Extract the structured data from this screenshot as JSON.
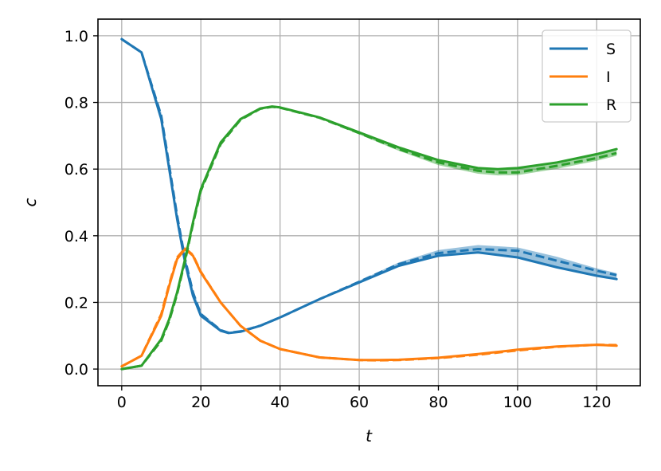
{
  "chart_data": {
    "type": "line",
    "xlabel": "t",
    "ylabel": "c",
    "xlim": [
      -6,
      131
    ],
    "ylim": [
      -0.05,
      1.05
    ],
    "x_ticks": [
      0,
      20,
      40,
      60,
      80,
      100,
      120
    ],
    "y_ticks": [
      0.0,
      0.2,
      0.4,
      0.6,
      0.8,
      1.0
    ],
    "x_tick_labels": [
      "0",
      "20",
      "40",
      "60",
      "80",
      "100",
      "120"
    ],
    "y_tick_labels": [
      "0.0",
      "0.2",
      "0.4",
      "0.6",
      "0.8",
      "1.0"
    ],
    "grid": true,
    "legend_position": "top-right",
    "legend": [
      "S",
      "I",
      "R"
    ],
    "series": [
      {
        "name": "S",
        "color": "#1f77b4",
        "x": [
          0,
          5,
          10,
          12,
          14,
          16,
          18,
          20,
          25,
          27,
          30,
          35,
          40,
          50,
          60,
          70,
          80,
          90,
          100,
          110,
          120,
          125
        ],
        "solid": [
          0.99,
          0.95,
          0.75,
          0.6,
          0.45,
          0.32,
          0.22,
          0.16,
          0.115,
          0.108,
          0.112,
          0.13,
          0.155,
          0.21,
          0.26,
          0.31,
          0.34,
          0.35,
          0.335,
          0.305,
          0.28,
          0.27
        ],
        "dashed": [
          0.99,
          0.95,
          0.76,
          0.61,
          0.46,
          0.33,
          0.23,
          0.165,
          0.117,
          0.109,
          0.113,
          0.13,
          0.155,
          0.21,
          0.262,
          0.315,
          0.348,
          0.36,
          0.355,
          0.325,
          0.295,
          0.282
        ],
        "band_low": [
          0.99,
          0.95,
          0.75,
          0.6,
          0.45,
          0.32,
          0.22,
          0.16,
          0.115,
          0.108,
          0.112,
          0.13,
          0.155,
          0.21,
          0.26,
          0.31,
          0.34,
          0.35,
          0.335,
          0.305,
          0.28,
          0.27
        ],
        "band_high": [
          0.99,
          0.95,
          0.77,
          0.62,
          0.47,
          0.34,
          0.24,
          0.17,
          0.12,
          0.11,
          0.114,
          0.131,
          0.156,
          0.212,
          0.265,
          0.32,
          0.357,
          0.372,
          0.365,
          0.337,
          0.302,
          0.288
        ]
      },
      {
        "name": "I",
        "color": "#ff7f0e",
        "x": [
          0,
          5,
          10,
          12,
          14,
          16,
          18,
          20,
          25,
          30,
          35,
          40,
          50,
          60,
          65,
          70,
          80,
          90,
          100,
          110,
          120,
          125
        ],
        "solid": [
          0.008,
          0.04,
          0.16,
          0.25,
          0.33,
          0.36,
          0.34,
          0.29,
          0.2,
          0.13,
          0.085,
          0.06,
          0.035,
          0.027,
          0.027,
          0.028,
          0.034,
          0.045,
          0.058,
          0.068,
          0.073,
          0.07
        ],
        "dashed": [
          0.008,
          0.04,
          0.165,
          0.255,
          0.335,
          0.362,
          0.342,
          0.292,
          0.2,
          0.13,
          0.085,
          0.06,
          0.035,
          0.027,
          0.026,
          0.027,
          0.033,
          0.043,
          0.056,
          0.067,
          0.073,
          0.072
        ],
        "band_low": [
          0.008,
          0.04,
          0.16,
          0.25,
          0.33,
          0.355,
          0.338,
          0.288,
          0.198,
          0.129,
          0.084,
          0.059,
          0.034,
          0.026,
          0.025,
          0.026,
          0.032,
          0.042,
          0.055,
          0.065,
          0.07,
          0.068
        ],
        "band_high": [
          0.008,
          0.042,
          0.17,
          0.26,
          0.34,
          0.368,
          0.347,
          0.296,
          0.203,
          0.132,
          0.087,
          0.061,
          0.036,
          0.028,
          0.028,
          0.029,
          0.035,
          0.046,
          0.059,
          0.069,
          0.075,
          0.074
        ]
      },
      {
        "name": "R",
        "color": "#2ca02c",
        "x": [
          0,
          5,
          10,
          12,
          14,
          16,
          18,
          20,
          25,
          30,
          35,
          38,
          40,
          50,
          60,
          70,
          80,
          90,
          95,
          100,
          110,
          120,
          125
        ],
        "solid": [
          0.0,
          0.01,
          0.09,
          0.15,
          0.23,
          0.33,
          0.44,
          0.54,
          0.68,
          0.75,
          0.782,
          0.788,
          0.785,
          0.755,
          0.71,
          0.665,
          0.627,
          0.603,
          0.6,
          0.603,
          0.62,
          0.645,
          0.66
        ],
        "dashed": [
          0.0,
          0.01,
          0.085,
          0.145,
          0.225,
          0.325,
          0.435,
          0.535,
          0.675,
          0.748,
          0.781,
          0.787,
          0.784,
          0.754,
          0.708,
          0.66,
          0.62,
          0.595,
          0.59,
          0.59,
          0.61,
          0.633,
          0.648
        ],
        "band_low": [
          0.0,
          0.01,
          0.082,
          0.14,
          0.22,
          0.32,
          0.43,
          0.53,
          0.672,
          0.746,
          0.78,
          0.786,
          0.783,
          0.752,
          0.704,
          0.655,
          0.612,
          0.586,
          0.581,
          0.582,
          0.601,
          0.625,
          0.64
        ],
        "band_high": [
          0.0,
          0.01,
          0.09,
          0.15,
          0.23,
          0.33,
          0.44,
          0.54,
          0.68,
          0.75,
          0.782,
          0.788,
          0.785,
          0.755,
          0.71,
          0.665,
          0.627,
          0.603,
          0.6,
          0.603,
          0.62,
          0.645,
          0.66
        ]
      }
    ]
  }
}
